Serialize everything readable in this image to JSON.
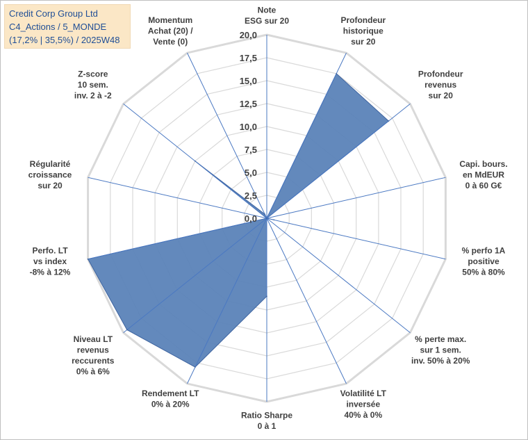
{
  "title_box": {
    "line1": "Credit Corp Group Ltd",
    "line2": "C4_Actions / 5_MONDE",
    "line3": "(17,2% | 35,5%) / 2025W48"
  },
  "colors": {
    "fill": "#5b83b8",
    "stroke": "#3e64a0",
    "grid": "#d9d9d9",
    "spoke": "#4a78c2"
  },
  "chart_data": {
    "type": "radar",
    "r_range": [
      0,
      20
    ],
    "tick_labels": [
      "0,0",
      "2,5",
      "5,0",
      "7,5",
      "10,0",
      "12,5",
      "15,0",
      "17,5",
      "20,0"
    ],
    "axes": [
      {
        "lines": [
          "Note",
          "ESG sur 20"
        ],
        "value": 0
      },
      {
        "lines": [
          "Profondeur",
          "historique",
          "sur 20"
        ],
        "value": 17.5
      },
      {
        "lines": [
          "Profondeur",
          "revenus",
          "sur 20"
        ],
        "value": 17
      },
      {
        "lines": [
          "Capi. bours.",
          "en MdEUR",
          "0 à 60 G€"
        ],
        "value": 0
      },
      {
        "lines": [
          "% perfo 1A",
          "positive",
          "50% à 80%"
        ],
        "value": 0.8
      },
      {
        "lines": [
          "% perte max.",
          "sur 1 sem.",
          "inv. 50% à 20%"
        ],
        "value": 0
      },
      {
        "lines": [
          "Volatilité LT",
          "inversée",
          "40% à 0%"
        ],
        "value": 0
      },
      {
        "lines": [
          "Ratio Sharpe",
          "0 à 1"
        ],
        "value": 8.5
      },
      {
        "lines": [
          "Rendement LT",
          "0% à 20%"
        ],
        "value": 18
      },
      {
        "lines": [
          "Niveau LT",
          "revenus",
          "reccurents",
          "0% à 6%"
        ],
        "value": 19.5
      },
      {
        "lines": [
          "Perfo. LT",
          "vs index",
          "-8% à 12%"
        ],
        "value": 20
      },
      {
        "lines": [
          "Régularité",
          "croissance",
          "sur 20"
        ],
        "value": 0
      },
      {
        "lines": [
          "Z-score",
          "10 sem.",
          "inv. 2 à -2"
        ],
        "value": 10
      },
      {
        "lines": [
          "Momentum",
          "Achat (20) /",
          "Vente (0)"
        ],
        "value": 0.5
      }
    ]
  }
}
